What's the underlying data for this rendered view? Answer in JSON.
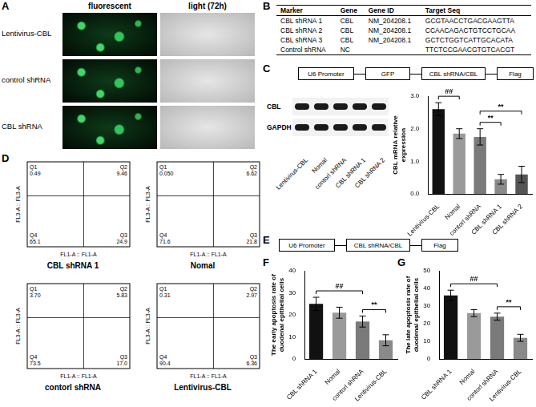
{
  "panel_labels": [
    "A",
    "B",
    "C",
    "D",
    "E",
    "F",
    "G"
  ],
  "panel_a": {
    "columns": [
      "fluorescent",
      "light (72h)"
    ],
    "rows": [
      "Lentivirus-CBL",
      "control shRNA",
      "CBL shRNA"
    ]
  },
  "table": {
    "header": [
      "Marker",
      "Gene",
      "Gene ID",
      "Target Seq"
    ],
    "rows": [
      [
        "CBL shRNA 1",
        "CBL",
        "NM_204208.1",
        "GCGTAACCTGACGAAGTTA"
      ],
      [
        "CBL shRNA 2",
        "CBL",
        "NM_204208.1",
        "CCAACAGACTGTCCTGCAA"
      ],
      [
        "CBL shRNA 3",
        "CBL",
        "NM_204208.1",
        "GCTCTGGTCATTGCACATA"
      ],
      [
        "Control shRNA",
        "NC",
        null,
        "TTCTCCGAACGTGTCACGT"
      ]
    ]
  },
  "construct_c": [
    "U6 Promoter",
    "GFP",
    "CBL shRNA/CBL",
    "Flag"
  ],
  "construct_e": [
    "U6 Promoter",
    "CBL shRNA/CBL",
    "Flag"
  ],
  "western_blot": {
    "bands": [
      "CBL",
      "GAPDH"
    ],
    "lanes": [
      "Lentivirus-CBL",
      "Nomal",
      "contorl shRNA",
      "CBL shRNA 1",
      "CBL shRNA 2"
    ]
  },
  "flow_cytometry": {
    "x_label": "FL1-A :: FL1-A",
    "y_label": "FL3-A :: FL3-A",
    "plots": [
      {
        "name": "CBL shRNA 1",
        "Q1": "0.49",
        "Q2": "9.46",
        "Q3": "24.9",
        "Q4": "65.1"
      },
      {
        "name": "Nomal",
        "Q1": "0.050",
        "Q2": "6.62",
        "Q3": "21.8",
        "Q4": "71.6"
      },
      {
        "name": "contorl shRNA",
        "Q1": "3.70",
        "Q2": "5.83",
        "Q3": "17.0",
        "Q4": "73.5"
      },
      {
        "name": "Lentivirus-CBL",
        "Q1": "0.31",
        "Q2": "2.97",
        "Q3": "6.36",
        "Q4": "90.4"
      }
    ]
  },
  "chart_data": [
    {
      "type": "bar",
      "y_label": [
        "CBL mRNA relative",
        "expression"
      ],
      "categories": [
        "Lentivirus-CBL",
        "Nomal",
        "contorl shRNA",
        "CBL shRNA 1",
        "CBL shRNA 2"
      ],
      "values": [
        2.6,
        1.85,
        1.75,
        0.45,
        0.6
      ],
      "errors": [
        0.2,
        0.15,
        0.25,
        0.15,
        0.25
      ],
      "colors": [
        "#111111",
        "#9a9a9a",
        "#7a7a7a",
        "#8a8a8a",
        "#555555"
      ],
      "ylim": [
        0,
        3
      ],
      "yticks": [
        {
          "value": 0,
          "label": "0.0"
        },
        {
          "value": 1,
          "label": "1.0"
        },
        {
          "value": 2,
          "label": "2.0"
        },
        {
          "value": 3,
          "label": "3.0"
        }
      ],
      "significance": [
        {
          "from": 0,
          "to": 1,
          "label": "##"
        },
        {
          "from": 2,
          "to": 3,
          "label": "**"
        },
        {
          "from": 2,
          "to": 4,
          "label": "**"
        }
      ]
    },
    {
      "type": "bar",
      "y_label": [
        "The early apoptosis rate of",
        "duodenal epithelial cells"
      ],
      "categories": [
        "CBL shRNA 1",
        "Nomal",
        "contorl shRNA",
        "Lentivirus-CBL"
      ],
      "values": [
        25,
        21,
        17,
        8.5
      ],
      "errors": [
        3,
        2.5,
        2.5,
        2.5
      ],
      "colors": [
        "#111111",
        "#9a9a9a",
        "#7a7a7a",
        "#8a8a8a"
      ],
      "ylim": [
        0,
        40
      ],
      "yticks": [
        0,
        10,
        20,
        30,
        40
      ],
      "significance": [
        {
          "from": 0,
          "to": 2,
          "label": "##"
        },
        {
          "from": 2,
          "to": 3,
          "label": "**"
        }
      ]
    },
    {
      "type": "bar",
      "y_label": [
        "The late apoptosis rate of",
        "duodenal epithelial cells"
      ],
      "categories": [
        "CBL shRNA 1",
        "Nomal",
        "contorl shRNA",
        "Lentivirus-CBL"
      ],
      "values": [
        36,
        26,
        24,
        12
      ],
      "errors": [
        3,
        2,
        2,
        2
      ],
      "colors": [
        "#111111",
        "#9a9a9a",
        "#7a7a7a",
        "#8a8a8a"
      ],
      "ylim": [
        0,
        50
      ],
      "yticks": [
        0,
        10,
        20,
        30,
        40,
        50
      ],
      "significance": [
        {
          "from": 0,
          "to": 2,
          "label": "##"
        },
        {
          "from": 2,
          "to": 3,
          "label": "**"
        }
      ]
    }
  ]
}
